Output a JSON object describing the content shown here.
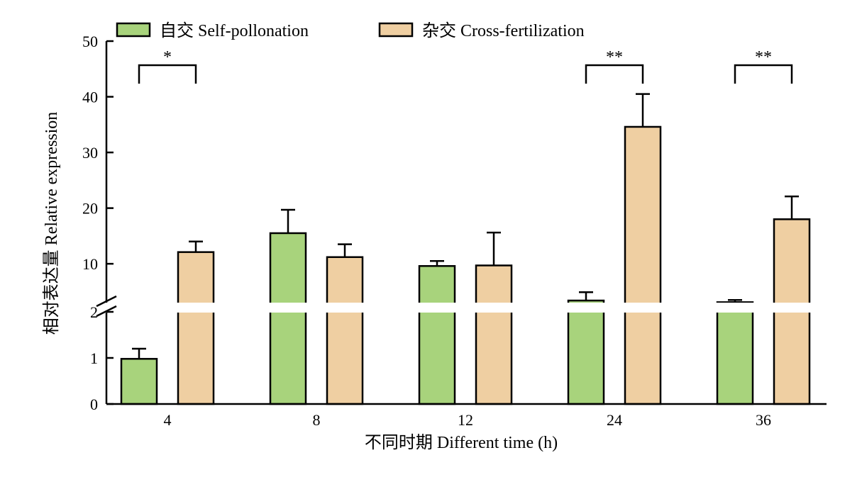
{
  "chart_data": {
    "type": "bar",
    "categories": [
      "4",
      "8",
      "12",
      "24",
      "36"
    ],
    "xlabel": "不同时期 Different time (h)",
    "ylabel": "相对表达量 Relative expression",
    "series": [
      {
        "name": "自交 Self-pollonation",
        "color": "#a8d37c",
        "values": [
          0.98,
          15.5,
          9.6,
          3.4,
          3.1
        ],
        "errors": [
          0.22,
          4.2,
          0.9,
          1.5,
          0.4
        ]
      },
      {
        "name": "杂交 Cross-fertilization",
        "color": "#efcfa2",
        "values": [
          12.1,
          11.2,
          9.7,
          34.6,
          18.0
        ],
        "errors": [
          1.9,
          2.3,
          5.9,
          5.9,
          4.1
        ]
      }
    ],
    "y_axis_broken": true,
    "y_lower_range": [
      0,
      2
    ],
    "y_lower_ticks": [
      "0",
      "1",
      "2"
    ],
    "y_upper_range": [
      2,
      50
    ],
    "y_upper_ticks": [
      "10",
      "20",
      "30",
      "40",
      "50"
    ],
    "significance": [
      {
        "category": "4",
        "label": "*"
      },
      {
        "category": "24",
        "label": "**"
      },
      {
        "category": "36",
        "label": "**"
      }
    ],
    "legend_position": "top",
    "grid": false
  }
}
